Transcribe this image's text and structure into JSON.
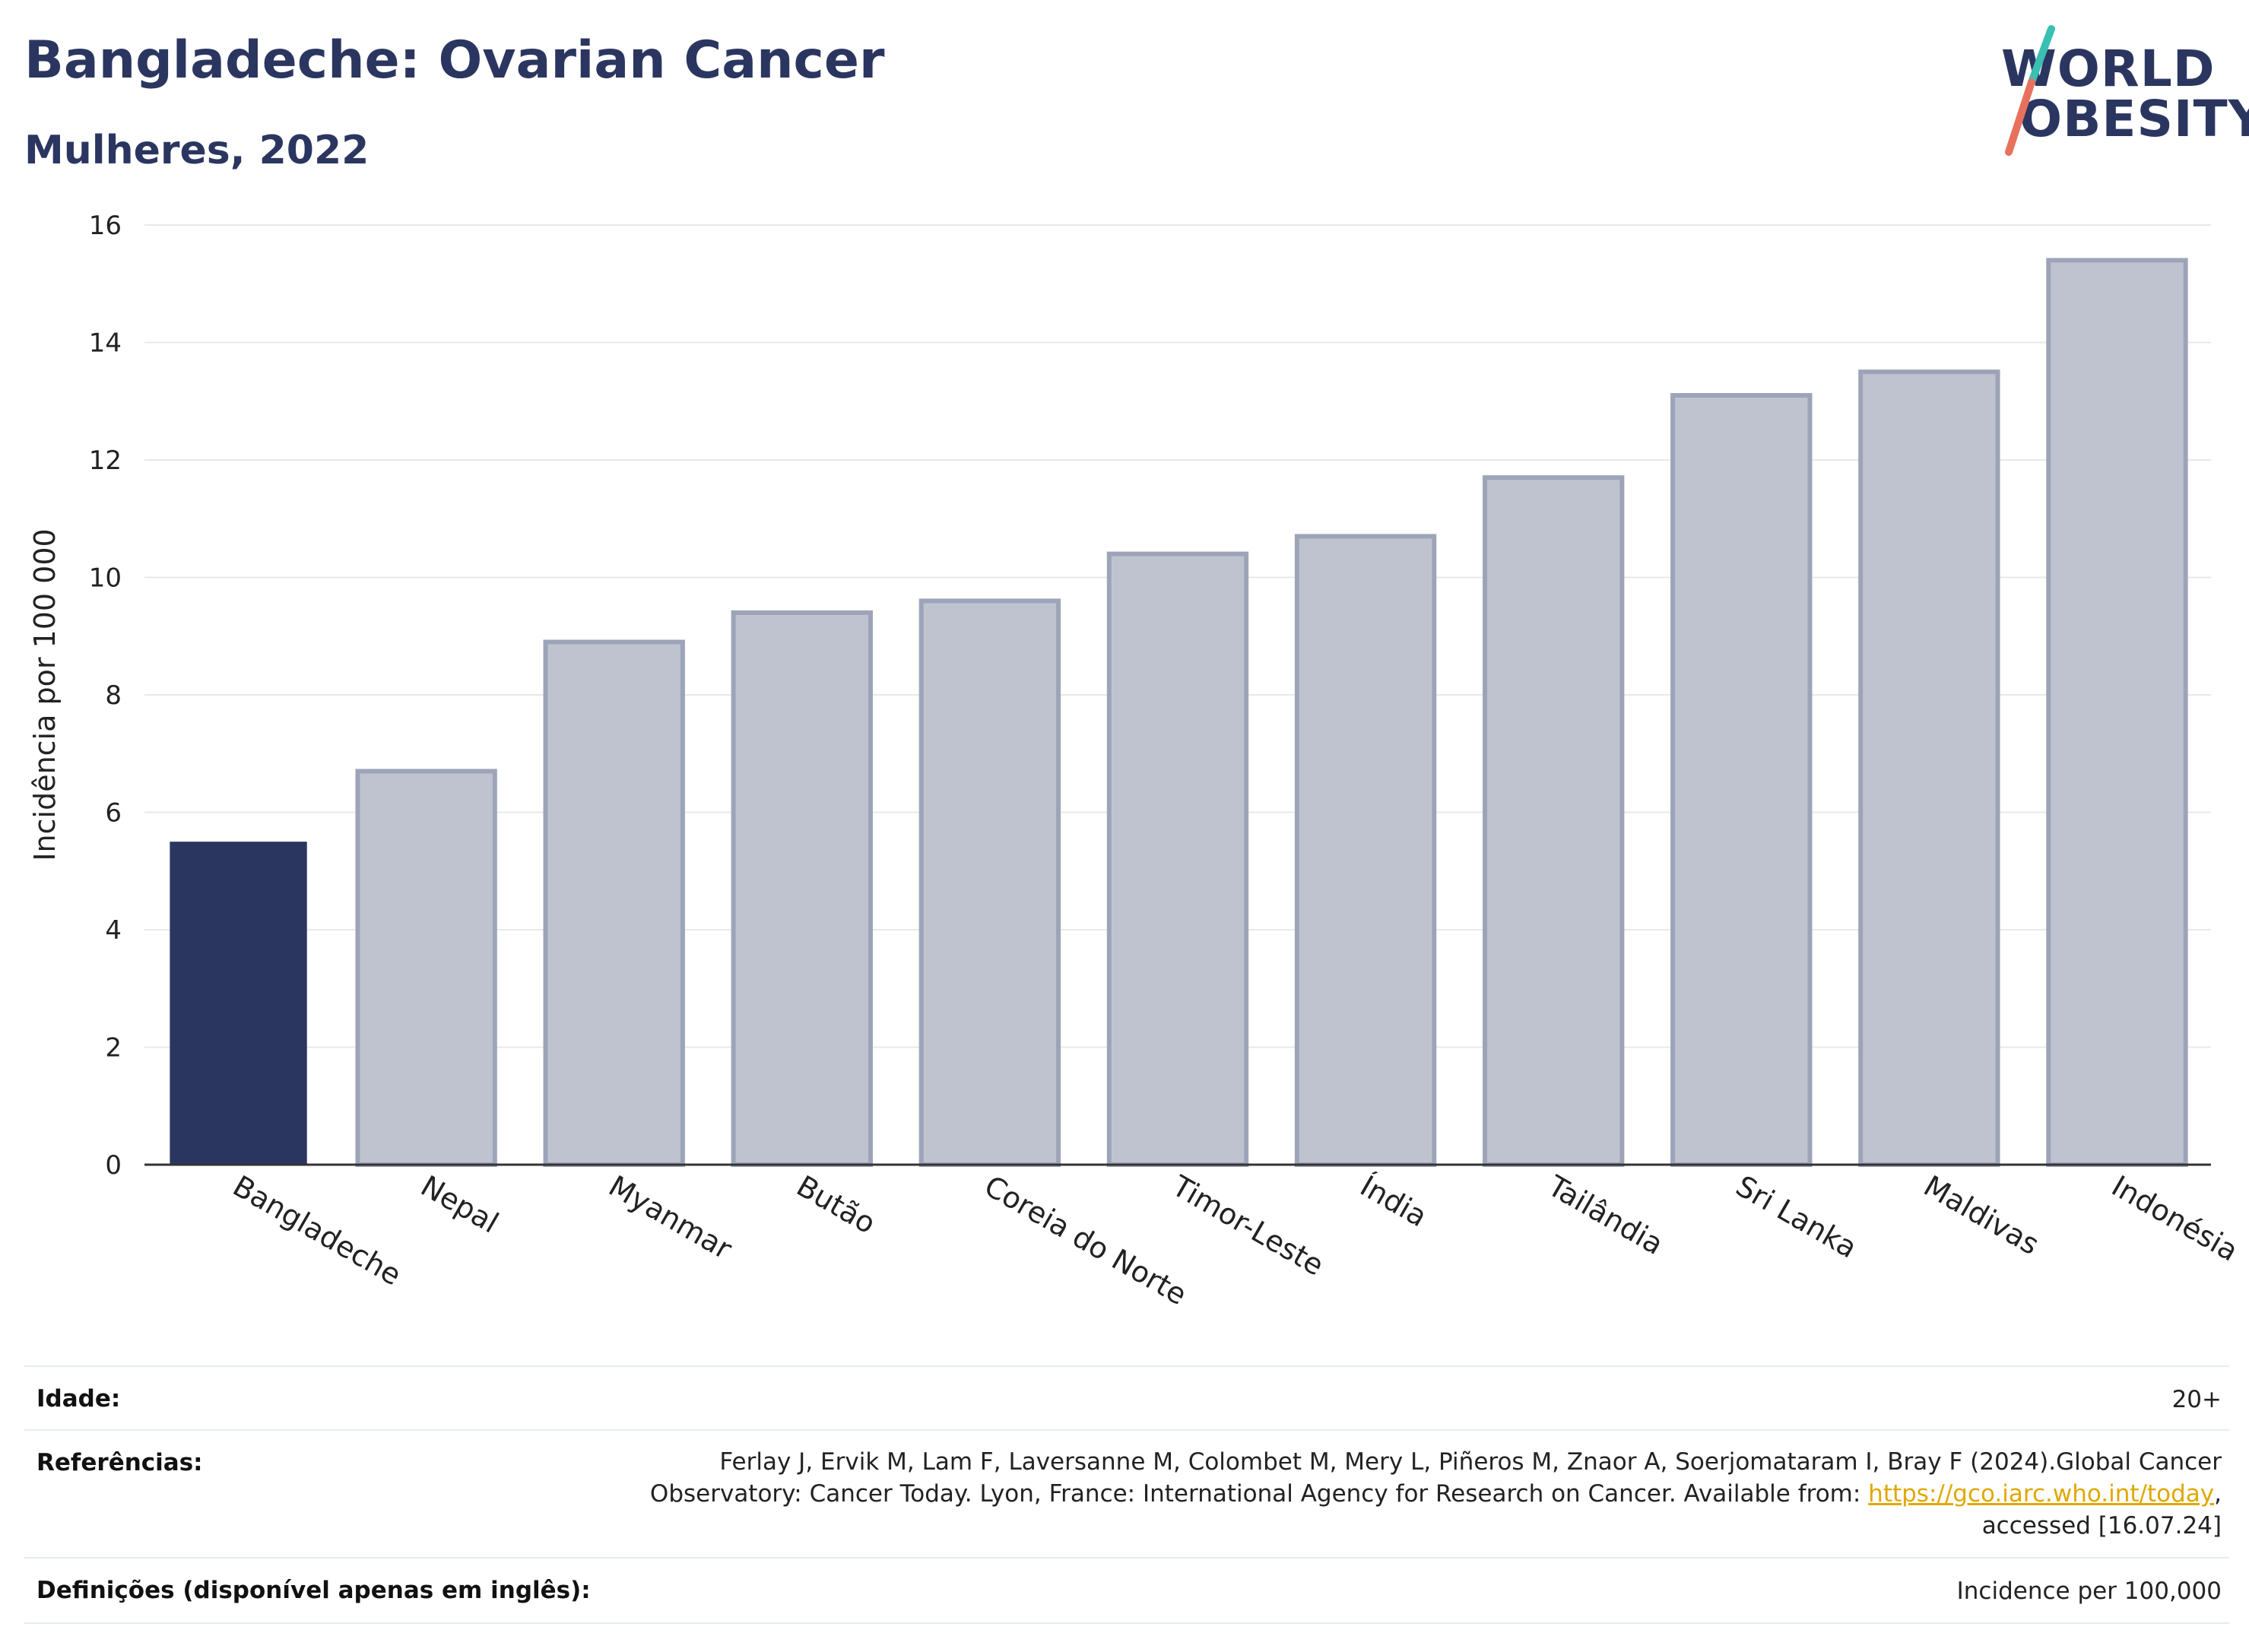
{
  "header": {
    "title": "Bangladeche: Ovarian Cancer",
    "subtitle": "Mulheres, 2022",
    "logo_line1": "WORLD",
    "logo_line2": "OBESITY"
  },
  "colors": {
    "highlight": "#2b3660",
    "bar": "#bfc3d0",
    "bar_edge": "#9ea4b8",
    "grid": "#e8e8e8",
    "logo_teal": "#3bbfb2",
    "logo_coral": "#e8715e"
  },
  "chart_data": {
    "type": "bar",
    "title": "Bangladeche: Ovarian Cancer",
    "subtitle": "Mulheres, 2022",
    "xlabel": "",
    "ylabel": "Incidência por 100 000",
    "ylim": [
      0,
      16
    ],
    "yticks": [
      0,
      2,
      4,
      6,
      8,
      10,
      12,
      14,
      16
    ],
    "grid": true,
    "highlight_category": "Bangladeche",
    "categories": [
      "Bangladeche",
      "Nepal",
      "Myanmar",
      "Butão",
      "Coreia do Norte",
      "Timor-Leste",
      "Índia",
      "Tailândia",
      "Sri Lanka",
      "Maldivas",
      "Indonésia"
    ],
    "values": [
      5.5,
      6.7,
      8.9,
      9.4,
      9.6,
      10.4,
      10.7,
      11.7,
      13.1,
      13.5,
      15.4
    ]
  },
  "info": {
    "age_label": "Idade:",
    "age_value": "20+",
    "refs_label": "Referências:",
    "refs_line1": "Ferlay J, Ervik M, Lam F, Laversanne M, Colombet M, Mery L, Piñeros M, Znaor A, Soerjomataram I, Bray F (2024).Global Cancer",
    "refs_line2_pre": "Observatory: Cancer Today. Lyon, France: International Agency for Research on Cancer. Available from: ",
    "refs_link": "https://gco.iarc.who.int/today",
    "refs_line2_post": ",",
    "refs_line3": "accessed [16.07.24]",
    "defs_label": "Definições (disponível apenas em inglês):",
    "defs_value": "Incidence per 100,000"
  }
}
